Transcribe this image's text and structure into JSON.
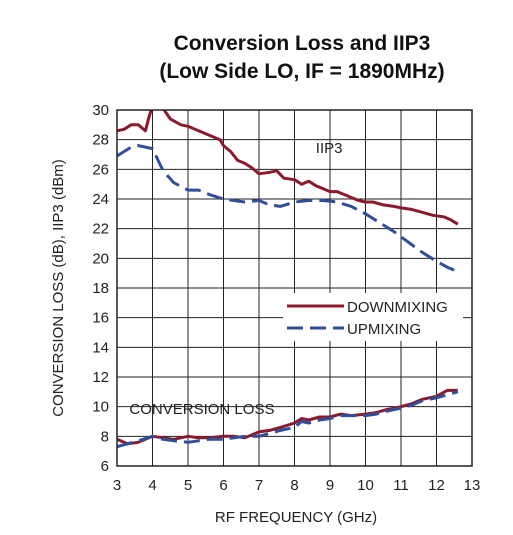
{
  "chart_data": {
    "type": "line",
    "title_line1": "Conversion Loss and IIP3",
    "title_line2": "(Low Side LO, IF = 1890MHz)",
    "xlabel": "RF FREQUENCY (GHz)",
    "ylabel": "CONVERSION LOSS (dB), IIP3 (dBm)",
    "xlim": [
      3,
      13
    ],
    "ylim": [
      6,
      30
    ],
    "xticks": [
      "3",
      "4",
      "5",
      "6",
      "7",
      "8",
      "9",
      "10",
      "11",
      "12",
      "13"
    ],
    "yticks": [
      "6",
      "8",
      "10",
      "12",
      "14",
      "16",
      "18",
      "20",
      "22",
      "24",
      "26",
      "28",
      "30"
    ],
    "grid": true,
    "legend_position": "right",
    "annotations": {
      "iip3": "IIP3",
      "conversion_loss": "CONVERSION LOSS"
    },
    "colors": {
      "downmixing": "#8b1a2e",
      "upmixing": "#2f4f9a"
    },
    "series": [
      {
        "name": "DOWNMIXING",
        "group": "iip3",
        "style": "solid",
        "x": [
          3.0,
          3.2,
          3.4,
          3.6,
          3.8,
          3.9,
          4.0,
          4.3,
          4.5,
          4.8,
          5.0,
          5.3,
          5.6,
          5.9,
          6.0,
          6.2,
          6.4,
          6.6,
          6.8,
          7.0,
          7.3,
          7.5,
          7.7,
          8.0,
          8.2,
          8.4,
          8.6,
          8.8,
          9.0,
          9.2,
          9.5,
          9.8,
          10.0,
          10.2,
          10.5,
          10.8,
          11.0,
          11.3,
          11.6,
          11.9,
          12.2,
          12.4,
          12.6
        ],
        "y": [
          28.6,
          28.7,
          29.0,
          29.0,
          28.6,
          29.5,
          30.3,
          30.1,
          29.4,
          29.0,
          28.9,
          28.6,
          28.3,
          28.0,
          27.6,
          27.2,
          26.6,
          26.4,
          26.1,
          25.7,
          25.8,
          25.9,
          25.4,
          25.3,
          25.0,
          25.2,
          24.9,
          24.7,
          24.5,
          24.5,
          24.2,
          23.9,
          23.8,
          23.8,
          23.6,
          23.5,
          23.4,
          23.3,
          23.1,
          22.9,
          22.8,
          22.6,
          22.3
        ]
      },
      {
        "name": "UPMIXING",
        "group": "iip3",
        "style": "dashed",
        "x": [
          3.0,
          3.2,
          3.4,
          3.6,
          3.8,
          4.0,
          4.3,
          4.6,
          5.0,
          5.3,
          5.6,
          6.0,
          6.3,
          6.6,
          7.0,
          7.3,
          7.6,
          8.0,
          8.4,
          8.8,
          9.2,
          9.6,
          10.0,
          10.4,
          10.8,
          11.2,
          11.6,
          12.0,
          12.3,
          12.6
        ],
        "y": [
          26.9,
          27.2,
          27.5,
          27.6,
          27.5,
          27.4,
          25.9,
          25.1,
          24.6,
          24.6,
          24.3,
          24.0,
          23.9,
          23.8,
          23.9,
          23.6,
          23.5,
          23.8,
          23.9,
          23.9,
          23.8,
          23.5,
          23.0,
          22.4,
          21.8,
          21.1,
          20.4,
          19.8,
          19.4,
          19.1
        ]
      },
      {
        "name": "DOWNMIXING",
        "group": "conversion_loss",
        "style": "solid",
        "x": [
          3.0,
          3.3,
          3.6,
          4.0,
          4.3,
          4.6,
          5.0,
          5.3,
          5.6,
          6.0,
          6.3,
          6.6,
          7.0,
          7.3,
          7.6,
          8.0,
          8.2,
          8.4,
          8.7,
          9.0,
          9.3,
          9.6,
          10.0,
          10.3,
          10.6,
          11.0,
          11.3,
          11.6,
          12.0,
          12.3,
          12.6
        ],
        "y": [
          7.8,
          7.5,
          7.6,
          8.0,
          7.9,
          7.8,
          8.0,
          7.9,
          7.9,
          8.0,
          8.0,
          7.9,
          8.3,
          8.4,
          8.6,
          8.9,
          9.2,
          9.1,
          9.3,
          9.3,
          9.5,
          9.4,
          9.5,
          9.6,
          9.8,
          10.0,
          10.2,
          10.5,
          10.7,
          11.1,
          11.1
        ]
      },
      {
        "name": "UPMIXING",
        "group": "conversion_loss",
        "style": "dashed",
        "x": [
          3.0,
          3.3,
          3.6,
          4.0,
          4.3,
          4.6,
          5.0,
          5.3,
          5.6,
          6.0,
          6.3,
          6.6,
          7.0,
          7.3,
          7.6,
          8.0,
          8.2,
          8.4,
          8.7,
          9.0,
          9.3,
          9.6,
          10.0,
          10.3,
          10.6,
          11.0,
          11.3,
          11.6,
          12.0,
          12.3,
          12.6
        ],
        "y": [
          7.3,
          7.5,
          7.7,
          8.0,
          7.8,
          7.7,
          7.6,
          7.7,
          7.8,
          7.8,
          7.9,
          8.0,
          8.0,
          8.2,
          8.4,
          8.6,
          9.0,
          8.9,
          9.1,
          9.2,
          9.4,
          9.4,
          9.4,
          9.5,
          9.7,
          9.9,
          10.1,
          10.4,
          10.6,
          10.8,
          11.0
        ]
      }
    ]
  }
}
